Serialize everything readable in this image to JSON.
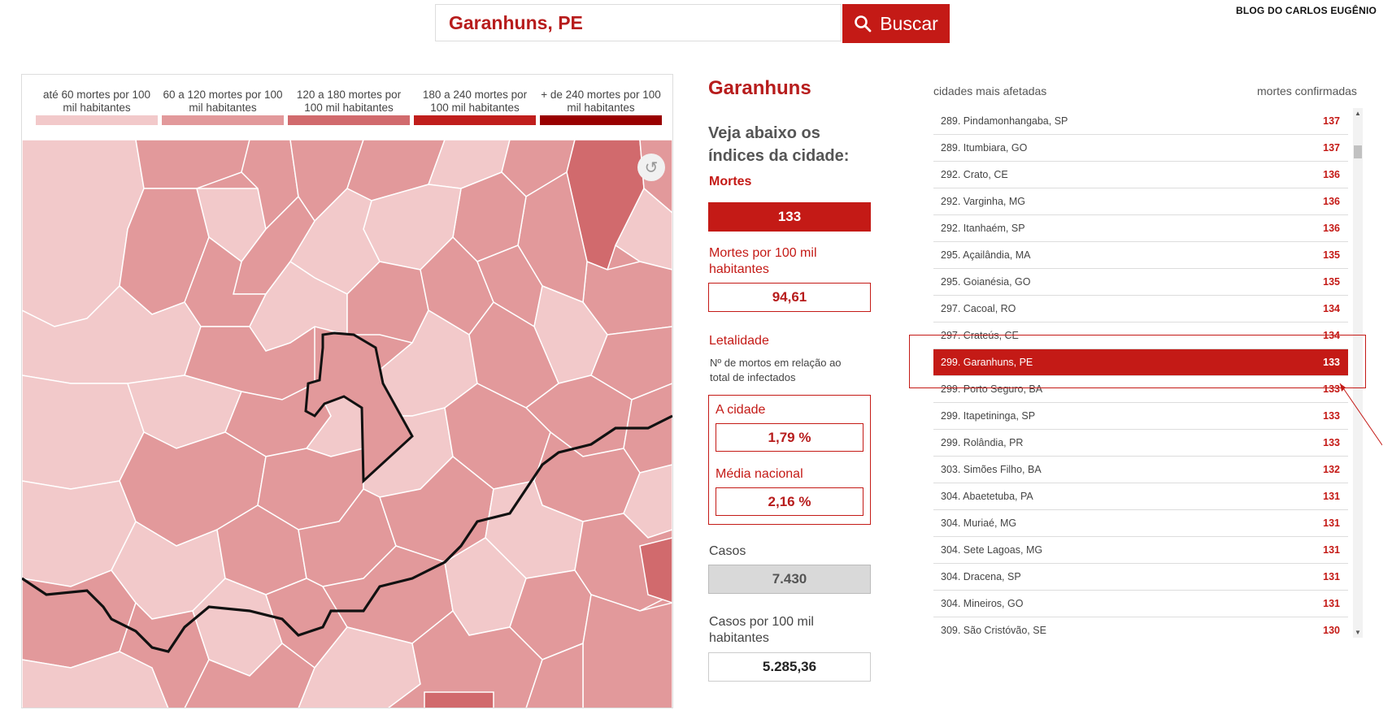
{
  "search": {
    "value": "Garanhuns, PE",
    "button_label": "Buscar"
  },
  "brand": "BLOG DO CARLOS EUGÊNIO",
  "legend": [
    {
      "label": "até 60 mortes por 100 mil habitantes",
      "color": "#f2c9ca"
    },
    {
      "label": "60 a 120 mortes por 100 mil habitantes",
      "color": "#e2999b"
    },
    {
      "label": "120 a 180 mortes por 100 mil habitantes",
      "color": "#d16a6d"
    },
    {
      "label": "180 a 240 mortes por 100 mil habitantes",
      "color": "#c01e1c"
    },
    {
      "label": "+ de 240 mortes por 100 mil habitantes",
      "color": "#990000"
    }
  ],
  "city": {
    "name": "Garanhuns",
    "subtitle": "Veja abaixo os índices da cidade:",
    "deaths_label": "Mortes",
    "deaths": "133",
    "deaths_per_100k_label": "Mortes por 100 mil habitantes",
    "deaths_per_100k": "94,61",
    "lethality_label": "Letalidade",
    "lethality_desc": "Nº de mortos em relação ao total de infectados",
    "city_label": "A cidade",
    "city_value": "1,79 %",
    "national_label": "Média nacional",
    "national_value": "2,16 %",
    "cases_label": "Casos",
    "cases": "7.430",
    "cases_per_100k_label": "Casos por 100 mil habitantes",
    "cases_per_100k": "5.285,36"
  },
  "ranking": {
    "header_left": "cidades mais afetadas",
    "header_right": "mortes confirmadas",
    "rows": [
      {
        "name": "289. Pindamonhangaba, SP",
        "value": "137"
      },
      {
        "name": "289. Itumbiara, GO",
        "value": "137"
      },
      {
        "name": "292. Crato, CE",
        "value": "136"
      },
      {
        "name": "292. Varginha, MG",
        "value": "136"
      },
      {
        "name": "292. Itanhaém, SP",
        "value": "136"
      },
      {
        "name": "295. Açailândia, MA",
        "value": "135"
      },
      {
        "name": "295. Goianésia, GO",
        "value": "135"
      },
      {
        "name": "297. Cacoal, RO",
        "value": "134"
      },
      {
        "name": "297. Crateús, CE",
        "value": "134"
      },
      {
        "name": "299. Garanhuns, PE",
        "value": "133",
        "highlight": true
      },
      {
        "name": "299. Porto Seguro, BA",
        "value": "133"
      },
      {
        "name": "299. Itapetininga, SP",
        "value": "133"
      },
      {
        "name": "299. Rolândia, PR",
        "value": "133"
      },
      {
        "name": "303. Simões Filho, BA",
        "value": "132"
      },
      {
        "name": "304. Abaetetuba, PA",
        "value": "131"
      },
      {
        "name": "304. Muriaé, MG",
        "value": "131"
      },
      {
        "name": "304. Sete Lagoas, MG",
        "value": "131"
      },
      {
        "name": "304. Dracena, SP",
        "value": "131"
      },
      {
        "name": "304. Mineiros, GO",
        "value": "131"
      },
      {
        "name": "309. São Cristóvão, SE",
        "value": "130"
      }
    ]
  },
  "icons": {
    "search": "search-icon",
    "reset": "reset-icon"
  }
}
